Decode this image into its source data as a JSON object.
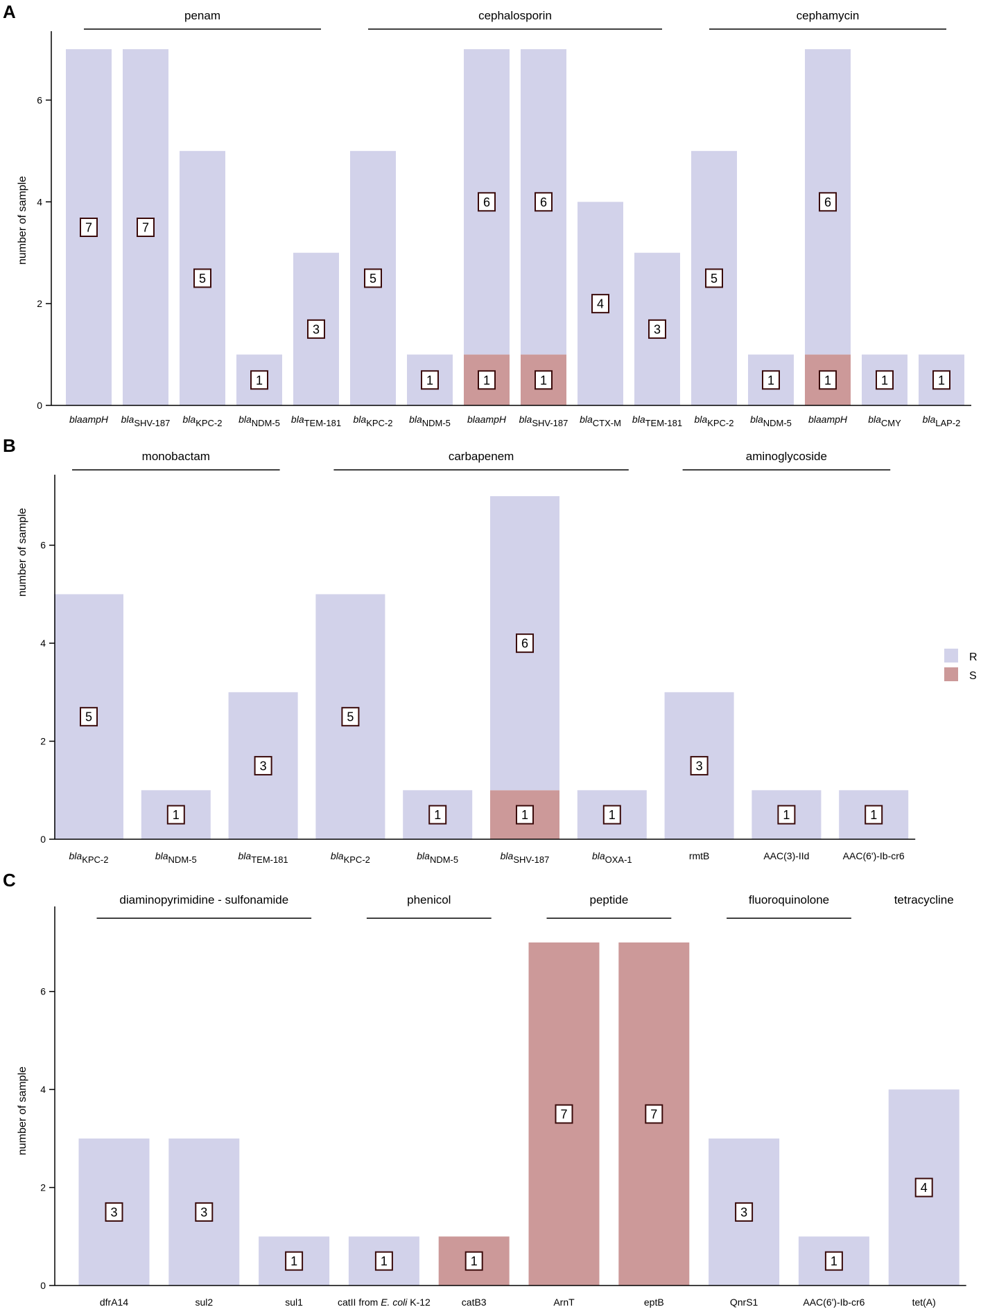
{
  "figure": {
    "legend": [
      {
        "key": "R",
        "label": "R",
        "color": "#d2d2ea"
      },
      {
        "key": "S",
        "label": "S",
        "color": "#cc9999"
      }
    ]
  },
  "chart_data": [
    {
      "panel": "A",
      "type": "bar",
      "stacked": true,
      "ylabel": "number of sample",
      "ylim": [
        0,
        7
      ],
      "yticks": [
        0,
        2,
        4,
        6
      ],
      "groups": [
        {
          "label": "penam",
          "from": 0,
          "to": 4
        },
        {
          "label": "cephalosporin",
          "from": 5,
          "to": 10
        },
        {
          "label": "cephamycin",
          "from": 11,
          "to": 15
        }
      ],
      "categories": [
        {
          "prefix": "bla",
          "sub": "",
          "rest": "ampH",
          "italic_rest": true
        },
        {
          "prefix": "bla",
          "sub": "SHV-187"
        },
        {
          "prefix": "bla",
          "sub": "KPC-2"
        },
        {
          "prefix": "bla",
          "sub": "NDM-5"
        },
        {
          "prefix": "bla",
          "sub": "TEM-181"
        },
        {
          "prefix": "bla",
          "sub": "KPC-2"
        },
        {
          "prefix": "bla",
          "sub": "NDM-5"
        },
        {
          "prefix": "bla",
          "sub": "",
          "rest": "ampH",
          "italic_rest": true
        },
        {
          "prefix": "bla",
          "sub": "SHV-187"
        },
        {
          "prefix": "bla",
          "sub": "CTX-M"
        },
        {
          "prefix": "bla",
          "sub": "TEM-181"
        },
        {
          "prefix": "bla",
          "sub": "KPC-2"
        },
        {
          "prefix": "bla",
          "sub": "NDM-5"
        },
        {
          "prefix": "bla",
          "sub": "",
          "rest": "ampH",
          "italic_rest": true
        },
        {
          "prefix": "bla",
          "sub": "CMY"
        },
        {
          "prefix": "bla",
          "sub": "LAP-2"
        }
      ],
      "series": [
        {
          "name": "R",
          "values": [
            7,
            7,
            5,
            1,
            3,
            5,
            1,
            6,
            6,
            4,
            3,
            5,
            1,
            6,
            1,
            1
          ]
        },
        {
          "name": "S",
          "values": [
            0,
            0,
            0,
            0,
            0,
            0,
            0,
            1,
            1,
            0,
            0,
            0,
            0,
            1,
            0,
            0
          ]
        }
      ]
    },
    {
      "panel": "B",
      "type": "bar",
      "stacked": true,
      "ylabel": "number of sample",
      "ylim": [
        0,
        7
      ],
      "yticks": [
        0,
        2,
        4,
        6
      ],
      "groups": [
        {
          "label": "monobactam",
          "from": 0,
          "to": 2
        },
        {
          "label": "carbapenem",
          "from": 3,
          "to": 6
        },
        {
          "label": "aminoglycoside",
          "from": 7,
          "to": 9
        }
      ],
      "categories": [
        {
          "prefix": "bla",
          "sub": "KPC-2"
        },
        {
          "prefix": "bla",
          "sub": "NDM-5"
        },
        {
          "prefix": "bla",
          "sub": "TEM-181"
        },
        {
          "prefix": "bla",
          "sub": "KPC-2"
        },
        {
          "prefix": "bla",
          "sub": "NDM-5"
        },
        {
          "prefix": "bla",
          "sub": "SHV-187"
        },
        {
          "prefix": "bla",
          "sub": "OXA-1"
        },
        {
          "text": "rmtB"
        },
        {
          "text": "AAC(3)-IId"
        },
        {
          "text": "AAC(6')-Ib-cr6"
        }
      ],
      "series": [
        {
          "name": "R",
          "values": [
            5,
            1,
            3,
            5,
            1,
            6,
            1,
            3,
            1,
            1
          ]
        },
        {
          "name": "S",
          "values": [
            0,
            0,
            0,
            0,
            0,
            1,
            0,
            0,
            0,
            0
          ]
        }
      ]
    },
    {
      "panel": "C",
      "type": "bar",
      "stacked": true,
      "ylabel": "number of sample",
      "ylim": [
        0,
        7
      ],
      "yticks": [
        0,
        2,
        4,
        6
      ],
      "groups": [
        {
          "label": "diaminopyrimidine - sulfonamide",
          "from": 0,
          "to": 2,
          "line": true
        },
        {
          "label": "phenicol",
          "from": 3,
          "to": 4,
          "line": true
        },
        {
          "label": "peptide",
          "from": 5,
          "to": 6,
          "line": true
        },
        {
          "label": "fluoroquinolone",
          "from": 7,
          "to": 8,
          "line": true
        },
        {
          "label": "tetracycline",
          "from": 9,
          "to": 9,
          "line": false
        }
      ],
      "categories": [
        {
          "text": "dfrA14"
        },
        {
          "text": "sul2"
        },
        {
          "text": "sul1"
        },
        {
          "text": "catII from ",
          "ital": "E. coli",
          "after": " K-12"
        },
        {
          "text": "catB3"
        },
        {
          "text": "ArnT"
        },
        {
          "text": "eptB"
        },
        {
          "text": "QnrS1"
        },
        {
          "text": "AAC(6')-Ib-cr6"
        },
        {
          "text": "tet(A)"
        }
      ],
      "series": [
        {
          "name": "R",
          "values": [
            3,
            3,
            1,
            1,
            0,
            0,
            0,
            3,
            1,
            4
          ]
        },
        {
          "name": "S",
          "values": [
            0,
            0,
            0,
            0,
            1,
            7,
            7,
            0,
            0,
            0
          ]
        }
      ]
    }
  ]
}
